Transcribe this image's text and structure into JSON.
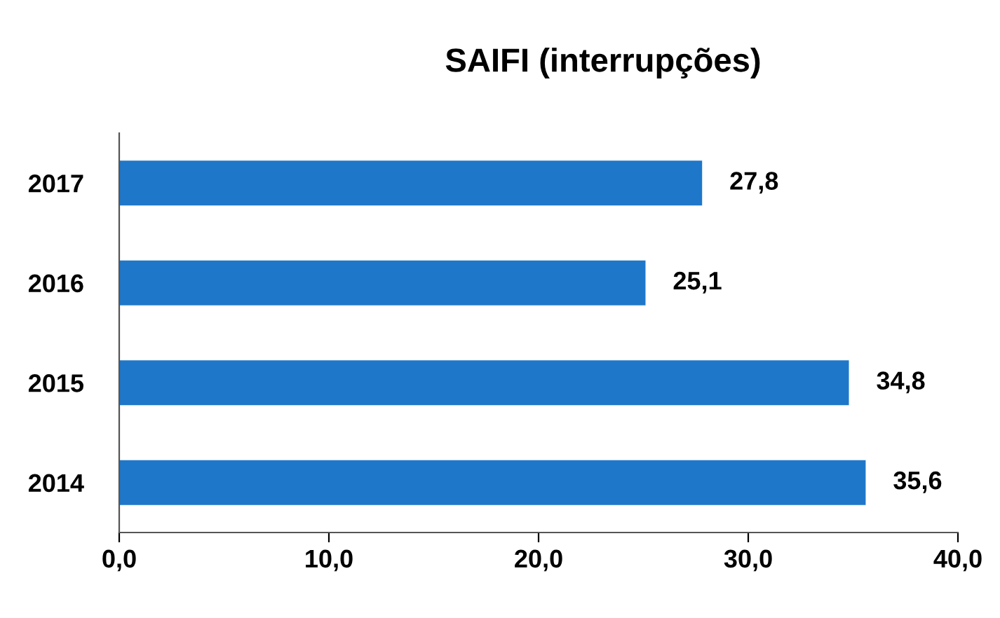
{
  "chart_data": {
    "type": "bar",
    "orientation": "horizontal",
    "title": "SAIFI (interrupções)",
    "categories": [
      "2017",
      "2016",
      "2015",
      "2014"
    ],
    "values": [
      27.8,
      25.1,
      34.8,
      35.6
    ],
    "value_labels": [
      "27,8",
      "25,1",
      "34,8",
      "35,6"
    ],
    "color": "#1f77c9",
    "xlim": [
      0,
      40
    ],
    "xticks": [
      {
        "value": 0,
        "label": "0,0"
      },
      {
        "value": 10,
        "label": "10,0"
      },
      {
        "value": 20,
        "label": "20,0"
      },
      {
        "value": 30,
        "label": "30,0"
      },
      {
        "value": 40,
        "label": "40,0"
      }
    ],
    "grid": false,
    "legend": false
  }
}
